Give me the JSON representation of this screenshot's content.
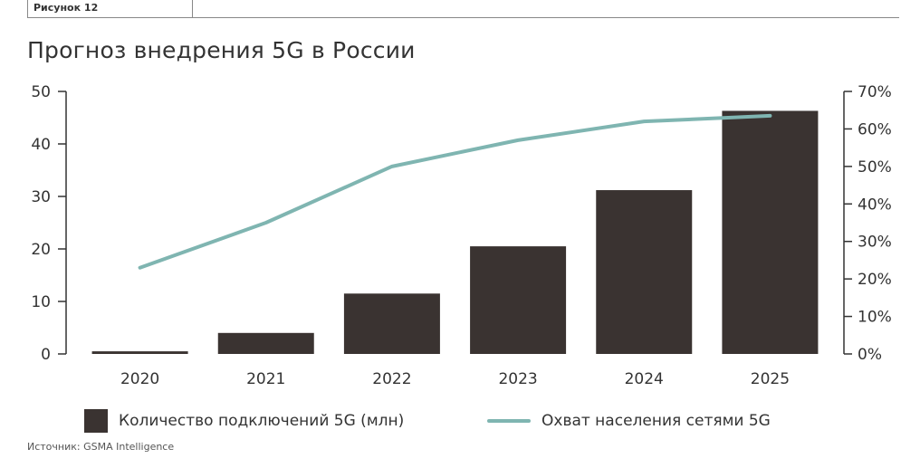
{
  "figure_label": "Рисунок 12",
  "title": "Прогноз внедрения 5G в России",
  "source": "Источник: GSMA Intelligence",
  "colors": {
    "bars": "#3a3331",
    "line": "#7fb5b1",
    "axis": "#333333"
  },
  "chart_data": {
    "type": "bar",
    "title": "Прогноз внедрения 5G в России",
    "categories": [
      "2020",
      "2021",
      "2022",
      "2023",
      "2024",
      "2025"
    ],
    "series": [
      {
        "name": "Количество подключений 5G (млн)",
        "type": "bar",
        "axis": "left",
        "values": [
          0.5,
          4,
          11.5,
          20.5,
          31.2,
          46.3
        ]
      },
      {
        "name": "Охват населения сетями 5G",
        "type": "line",
        "axis": "right",
        "values": [
          23,
          35,
          50,
          57,
          62,
          63.5
        ]
      }
    ],
    "y_left": {
      "min": 0,
      "max": 50,
      "ticks": [
        "0",
        "10",
        "20",
        "30",
        "40",
        "50"
      ]
    },
    "y_right": {
      "min": 0,
      "max": 70,
      "unit": "%",
      "ticks": [
        "0%",
        "10%",
        "20%",
        "30%",
        "40%",
        "50%",
        "60%",
        "70%"
      ]
    },
    "grid": false,
    "legend_position": "bottom"
  }
}
